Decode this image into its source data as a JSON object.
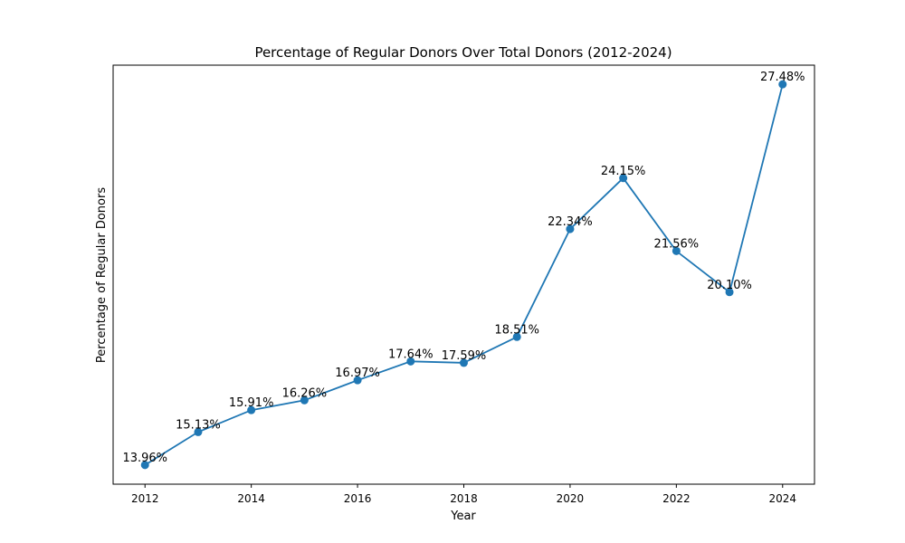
{
  "chart_data": {
    "type": "line",
    "title": "Percentage of Regular Donors Over Total Donors (2012-2024)",
    "xlabel": "Year",
    "ylabel": "Percentage of Regular Donors",
    "x": [
      2012,
      2013,
      2014,
      2015,
      2016,
      2017,
      2018,
      2019,
      2020,
      2021,
      2022,
      2023,
      2024
    ],
    "values": [
      13.96,
      15.13,
      15.91,
      16.26,
      16.97,
      17.64,
      17.59,
      18.51,
      22.34,
      24.15,
      21.56,
      20.1,
      27.48
    ],
    "data_labels": [
      "13.96%",
      "15.13%",
      "15.91%",
      "16.26%",
      "16.97%",
      "17.64%",
      "17.59%",
      "18.51%",
      "22.34%",
      "24.15%",
      "21.56%",
      "20.10%",
      "27.48%"
    ],
    "xticks": [
      2012,
      2014,
      2016,
      2018,
      2020,
      2022,
      2024
    ],
    "xlim": [
      2011.4,
      2024.6
    ],
    "ylim": [
      13.28,
      28.16
    ],
    "yticks_visible": false,
    "grid": false,
    "line_color": "#1f77b4",
    "marker": "circle"
  }
}
